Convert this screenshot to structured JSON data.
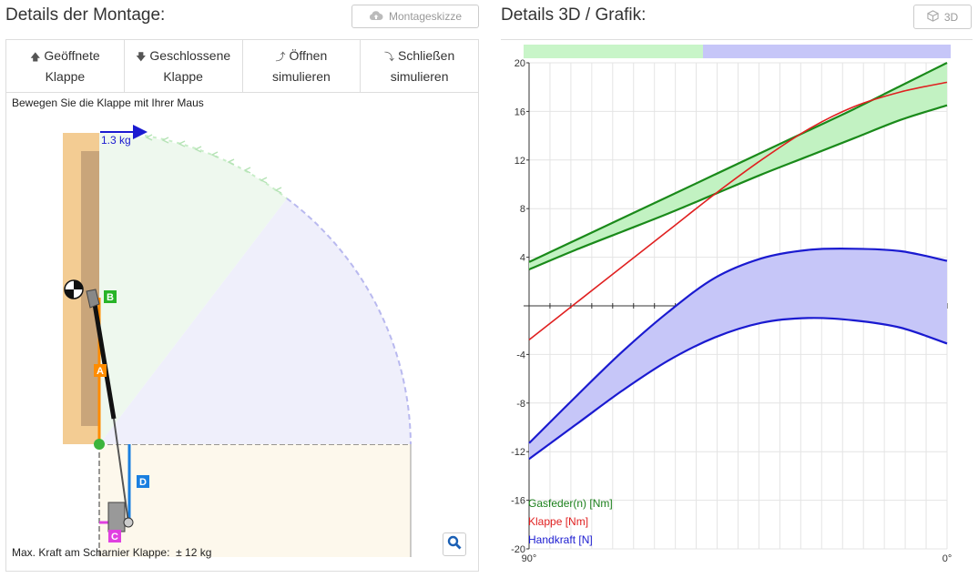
{
  "left": {
    "title": "Details der Montage:",
    "sketch_button": "Montageskizze",
    "tabs": [
      {
        "icon": "arrow-up-icon",
        "line1": "Geöffnete",
        "line2": "Klappe"
      },
      {
        "icon": "arrow-down-icon",
        "line1": "Geschlossene",
        "line2": "Klappe"
      },
      {
        "icon": "arrow-curve-up-icon",
        "line1": "Öffnen",
        "line2": "simulieren"
      },
      {
        "icon": "arrow-curve-down-icon",
        "line1": "Schließen",
        "line2": "simulieren"
      }
    ],
    "hint": "Bewegen Sie die Klappe mit Ihrer Maus",
    "weight_label": "1.3 kg",
    "markers": {
      "a": "A",
      "b": "B",
      "c": "C",
      "d": "D"
    },
    "max_force_label": "Max. Kraft am Scharnier Klappe:",
    "max_force_value": "± 12 kg"
  },
  "right": {
    "title": "Details 3D / Grafik:",
    "button_3d": "3D",
    "x_start_label": "90°",
    "x_end_label": "0°",
    "legend": [
      {
        "label": "Gasfeder(n) [Nm]",
        "color": "#1a7f1a"
      },
      {
        "label": "Klappe [Nm]",
        "color": "#e02020"
      },
      {
        "label": "Handkraft [N]",
        "color": "#1a1ad0"
      }
    ]
  },
  "chart_data": {
    "type": "line",
    "x": [
      90,
      80,
      70,
      60,
      50,
      40,
      30,
      20,
      10,
      0
    ],
    "ylim": [
      -20,
      20
    ],
    "yticks": [
      -20,
      -16,
      -12,
      -8,
      -4,
      0,
      4,
      8,
      12,
      16,
      20
    ],
    "progress_bar": {
      "open_fraction": 0.42
    },
    "series": [
      {
        "name": "Gasfeder(n) [Nm]",
        "color": "#1a8a1a",
        "role": "upper",
        "values": [
          3.6,
          5.4,
          7.2,
          9.0,
          10.8,
          12.6,
          14.4,
          16.2,
          18.1,
          20.0
        ]
      },
      {
        "name": "Gasfeder(n) [Nm]",
        "color": "#1a8a1a",
        "role": "lower",
        "values": [
          3.0,
          4.6,
          6.1,
          7.6,
          9.2,
          10.8,
          12.3,
          13.8,
          15.3,
          16.5
        ]
      },
      {
        "name": "Klappe [Nm]",
        "color": "#e02020",
        "values": [
          -2.8,
          0.2,
          3.2,
          6.2,
          9.2,
          12.0,
          14.5,
          16.4,
          17.6,
          18.4
        ]
      },
      {
        "name": "Handkraft [N]",
        "color": "#1a1ad0",
        "role": "upper",
        "values": [
          -11.3,
          -7.5,
          -3.8,
          -0.5,
          2.3,
          3.9,
          4.6,
          4.7,
          4.5,
          3.7
        ]
      },
      {
        "name": "Handkraft [N]",
        "color": "#1a1ad0",
        "role": "lower",
        "values": [
          -12.6,
          -9.8,
          -7.0,
          -4.5,
          -2.6,
          -1.4,
          -1.0,
          -1.2,
          -1.8,
          -3.1
        ]
      }
    ]
  }
}
